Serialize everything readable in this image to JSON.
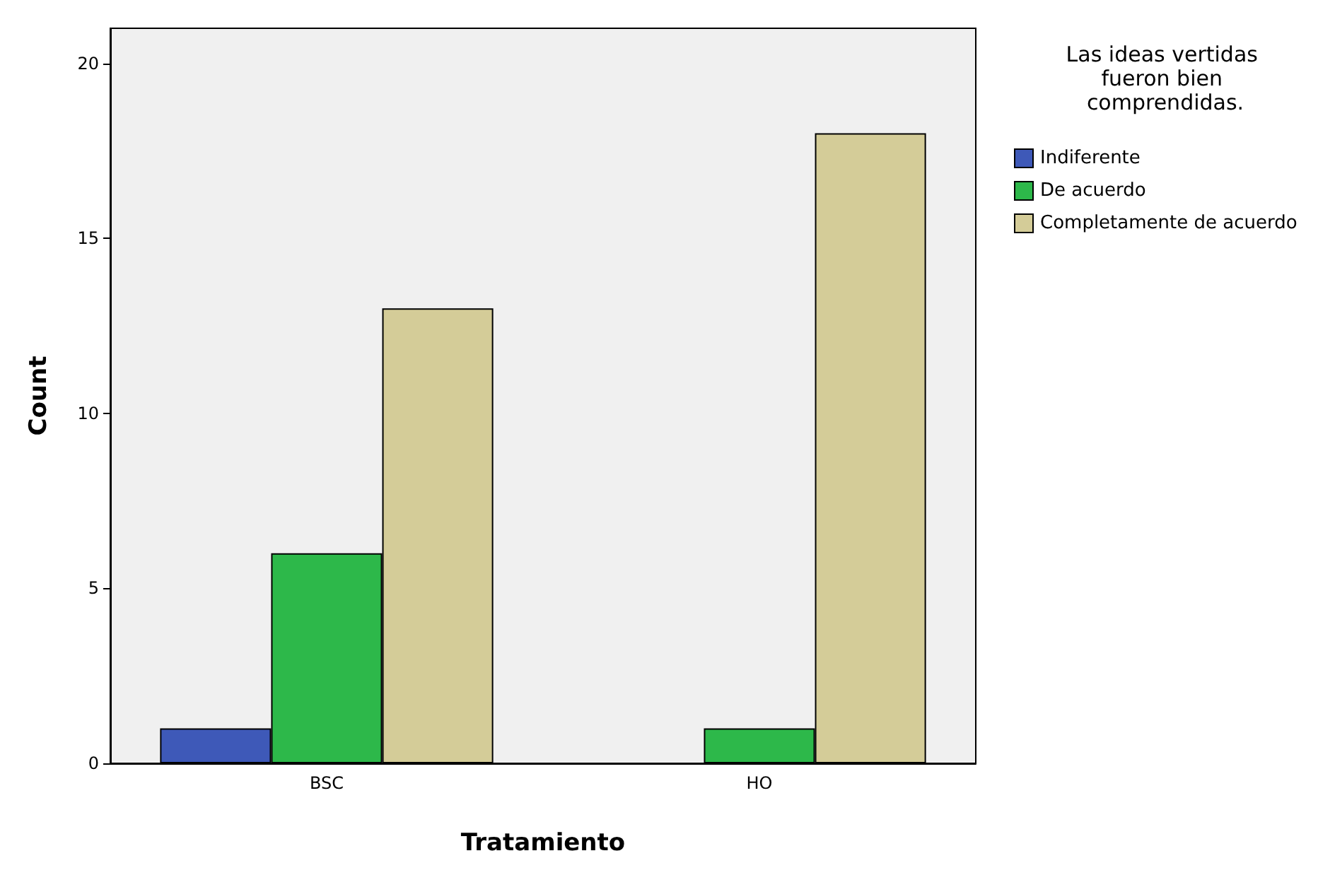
{
  "chart_data": {
    "type": "bar",
    "xlabel": "Tratamiento",
    "ylabel": "Count",
    "legend_title": "Las ideas vertidas fueron bien comprendidas.",
    "categories": [
      "BSC",
      "HO"
    ],
    "series": [
      {
        "name": "Indiferente",
        "color": "#3e59b8",
        "values": [
          1,
          null
        ]
      },
      {
        "name": "De acuerdo",
        "color": "#2db84a",
        "values": [
          6,
          1
        ]
      },
      {
        "name": "Completamente de acuerdo",
        "color": "#d4cc98",
        "values": [
          13,
          18
        ]
      }
    ],
    "ylim": [
      0,
      21
    ],
    "yticks": [
      0,
      5,
      10,
      15,
      20
    ],
    "grid": false,
    "legend": "top right"
  }
}
